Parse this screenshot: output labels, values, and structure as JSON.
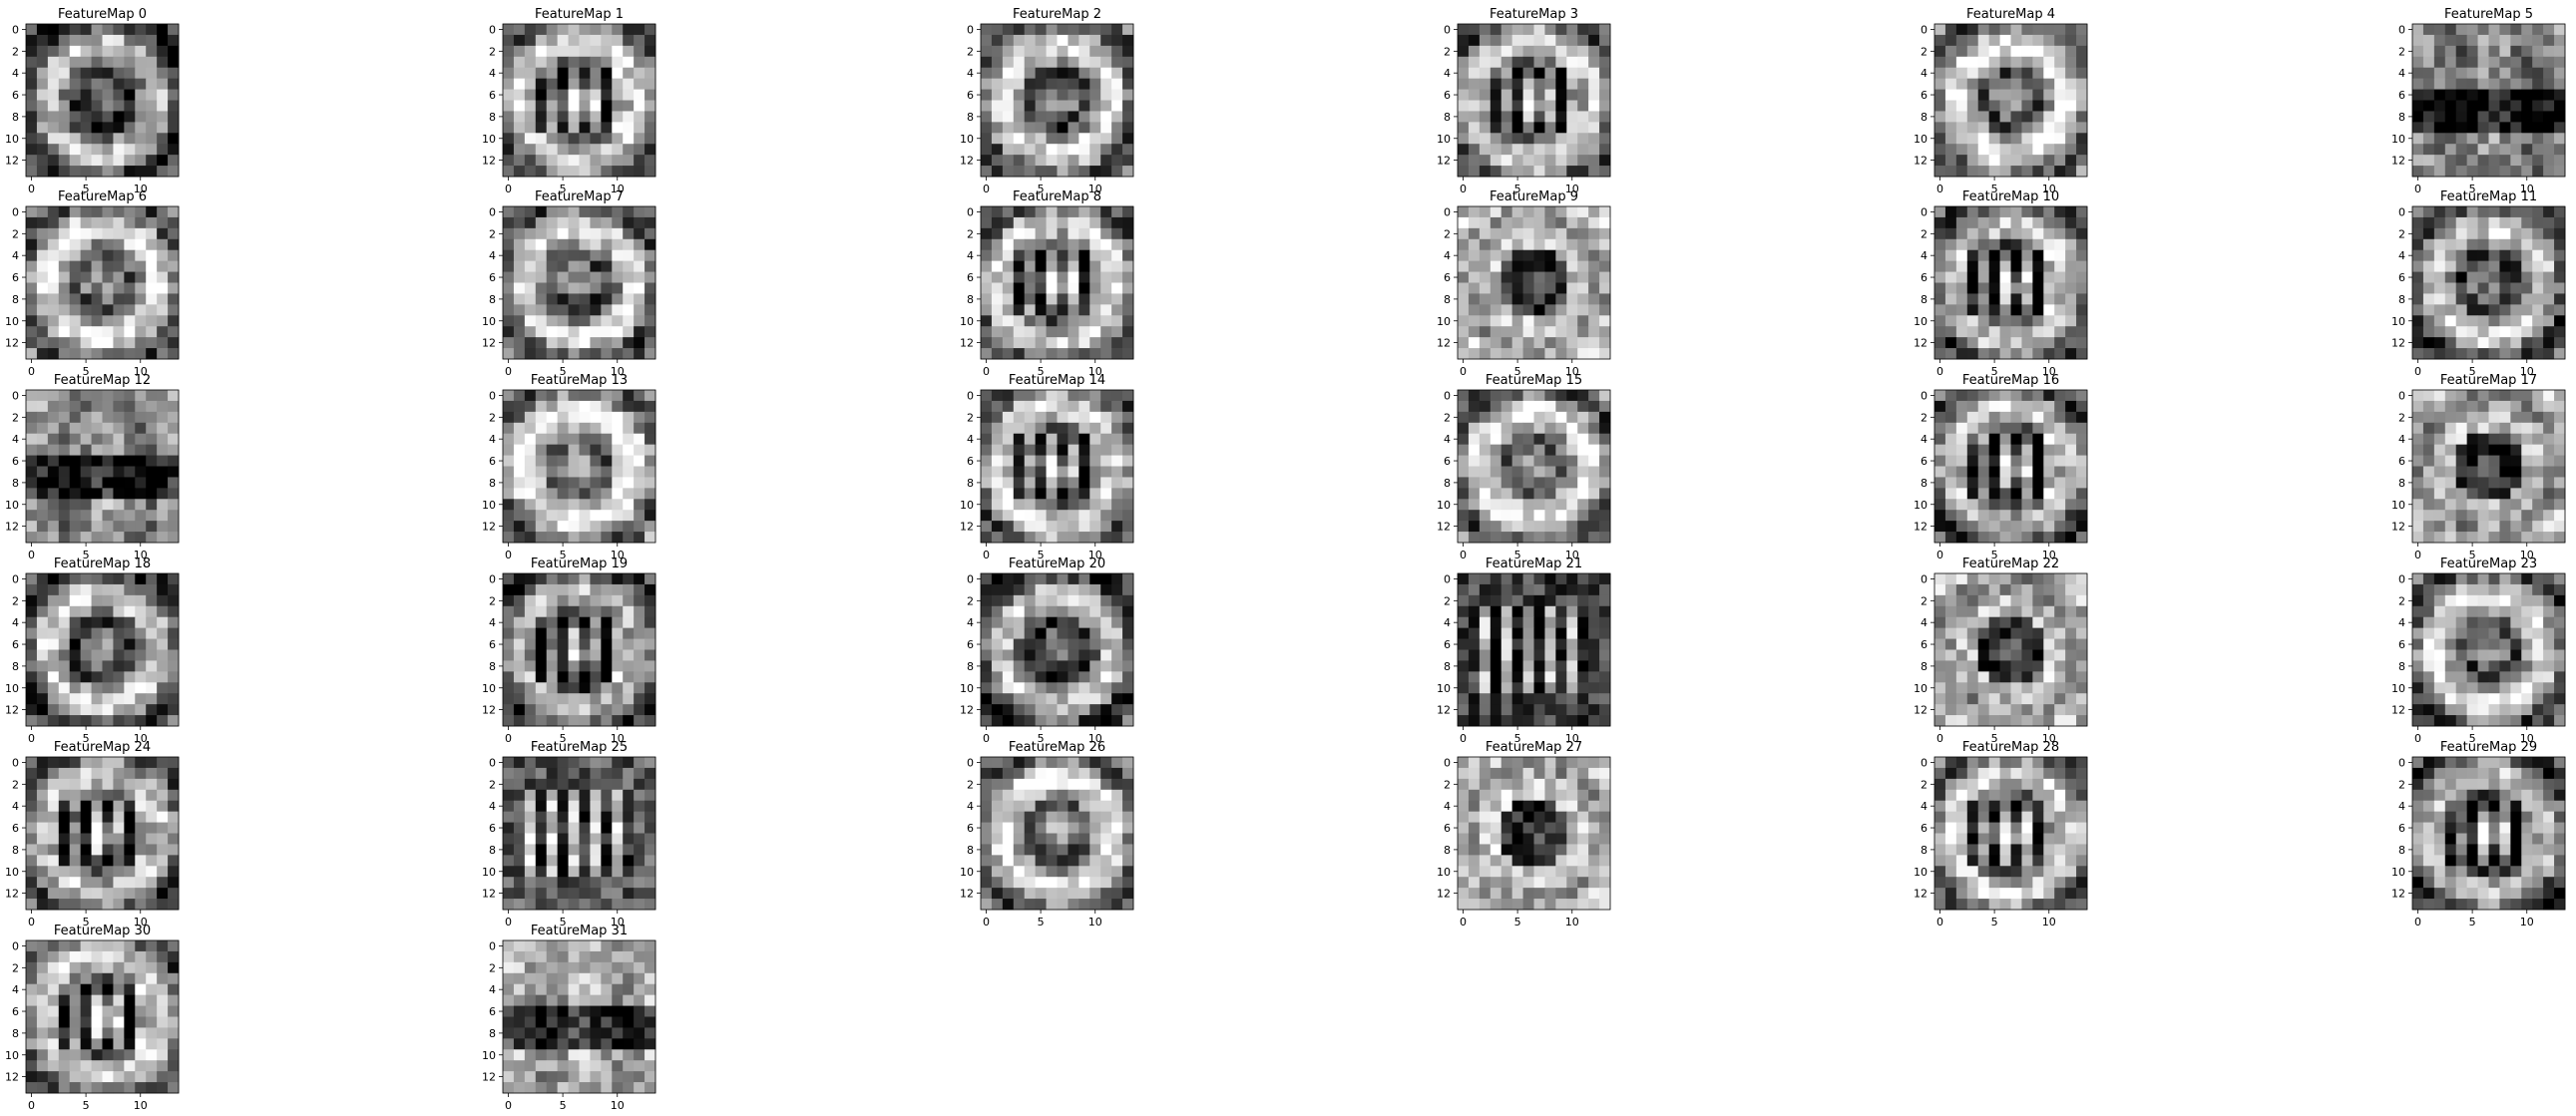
{
  "figure": {
    "panel_titles": [
      "FeatureMap 0",
      "FeatureMap 1",
      "FeatureMap 2",
      "FeatureMap 3",
      "FeatureMap 4",
      "FeatureMap 5",
      "FeatureMap 6",
      "FeatureMap 7",
      "FeatureMap 8",
      "FeatureMap 9",
      "FeatureMap 10",
      "FeatureMap 11",
      "FeatureMap 12",
      "FeatureMap 13",
      "FeatureMap 14",
      "FeatureMap 15",
      "FeatureMap 16",
      "FeatureMap 17",
      "FeatureMap 18",
      "FeatureMap 19",
      "FeatureMap 20",
      "FeatureMap 21",
      "FeatureMap 22",
      "FeatureMap 23",
      "FeatureMap 24",
      "FeatureMap 25",
      "FeatureMap 26",
      "FeatureMap 27",
      "FeatureMap 28",
      "FeatureMap 29",
      "FeatureMap 30",
      "FeatureMap 31"
    ],
    "colormap": "gray",
    "grid_columns": 6,
    "x_tick_labels_on_rows": "shown on the bottom row of each column"
  },
  "chart_data": {
    "type": "heatmap",
    "colormap": "gray",
    "matrix_size": [
      14,
      14
    ],
    "panels": 32,
    "xlim": [
      -0.5,
      13.5
    ],
    "ylim": [
      13.5,
      -0.5
    ],
    "xticks": [
      0,
      5,
      10
    ],
    "yticks": [
      0,
      2,
      4,
      6,
      8,
      10,
      12
    ],
    "xtick_labels": [
      "0",
      "5",
      "10"
    ],
    "ytick_labels": [
      "0",
      "2",
      "4",
      "6",
      "8",
      "10",
      "12"
    ],
    "values_note": "",
    "maps": [
      {
        "title": "FeatureMap 0",
        "brightness": 0.45,
        "pattern": "ring"
      },
      {
        "title": "FeatureMap 1",
        "brightness": 0.55,
        "pattern": "ring-bars"
      },
      {
        "title": "FeatureMap 2",
        "brightness": 0.55,
        "pattern": "ring"
      },
      {
        "title": "FeatureMap 3",
        "brightness": 0.55,
        "pattern": "ring-bars"
      },
      {
        "title": "FeatureMap 4",
        "brightness": 0.6,
        "pattern": "ring"
      },
      {
        "title": "FeatureMap 5",
        "brightness": 0.35,
        "pattern": "horizontal-band"
      },
      {
        "title": "FeatureMap 6",
        "brightness": 0.6,
        "pattern": "ring"
      },
      {
        "title": "FeatureMap 7",
        "brightness": 0.55,
        "pattern": "ring"
      },
      {
        "title": "FeatureMap 8",
        "brightness": 0.55,
        "pattern": "ring-bars"
      },
      {
        "title": "FeatureMap 9",
        "brightness": 0.6,
        "pattern": "center-dark"
      },
      {
        "title": "FeatureMap 10",
        "brightness": 0.5,
        "pattern": "ring-bars"
      },
      {
        "title": "FeatureMap 11",
        "brightness": 0.5,
        "pattern": "ring"
      },
      {
        "title": "FeatureMap 12",
        "brightness": 0.4,
        "pattern": "horizontal-band"
      },
      {
        "title": "FeatureMap 13",
        "brightness": 0.65,
        "pattern": "ring"
      },
      {
        "title": "FeatureMap 14",
        "brightness": 0.55,
        "pattern": "ring-bars"
      },
      {
        "title": "FeatureMap 15",
        "brightness": 0.6,
        "pattern": "ring"
      },
      {
        "title": "FeatureMap 16",
        "brightness": 0.5,
        "pattern": "ring-bars"
      },
      {
        "title": "FeatureMap 17",
        "brightness": 0.55,
        "pattern": "center-dark"
      },
      {
        "title": "FeatureMap 18",
        "brightness": 0.5,
        "pattern": "ring"
      },
      {
        "title": "FeatureMap 19",
        "brightness": 0.45,
        "pattern": "ring-bars"
      },
      {
        "title": "FeatureMap 20",
        "brightness": 0.45,
        "pattern": "ring"
      },
      {
        "title": "FeatureMap 21",
        "brightness": 0.35,
        "pattern": "vertical-bars"
      },
      {
        "title": "FeatureMap 22",
        "brightness": 0.55,
        "pattern": "center-dark"
      },
      {
        "title": "FeatureMap 23",
        "brightness": 0.55,
        "pattern": "ring"
      },
      {
        "title": "FeatureMap 24",
        "brightness": 0.5,
        "pattern": "ring-bars"
      },
      {
        "title": "FeatureMap 25",
        "brightness": 0.45,
        "pattern": "vertical-bars"
      },
      {
        "title": "FeatureMap 26",
        "brightness": 0.6,
        "pattern": "ring"
      },
      {
        "title": "FeatureMap 27",
        "brightness": 0.6,
        "pattern": "center-dark"
      },
      {
        "title": "FeatureMap 28",
        "brightness": 0.55,
        "pattern": "ring-bars"
      },
      {
        "title": "FeatureMap 29",
        "brightness": 0.45,
        "pattern": "ring-bars"
      },
      {
        "title": "FeatureMap 30",
        "brightness": 0.55,
        "pattern": "ring-bars"
      },
      {
        "title": "FeatureMap 31",
        "brightness": 0.5,
        "pattern": "horizontal-band"
      }
    ]
  }
}
